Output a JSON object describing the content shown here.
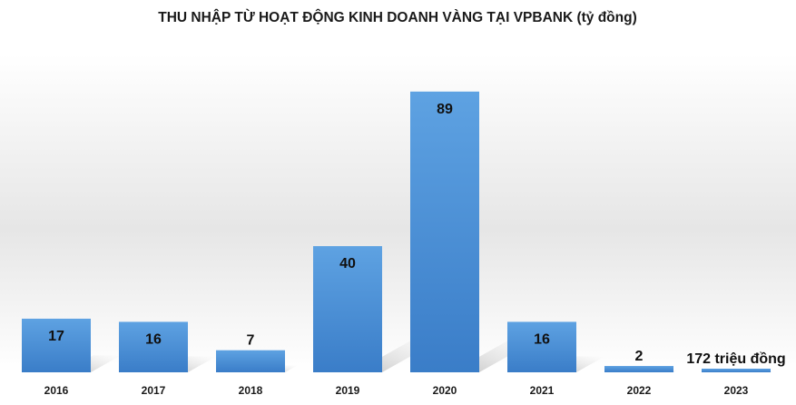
{
  "chart_data": {
    "type": "bar",
    "title": "THU NHẬP TỪ HOẠT ĐỘNG KINH DOANH VÀNG TẠI VPBANK (tỷ đồng)",
    "categories": [
      "2016",
      "2017",
      "2018",
      "2019",
      "2020",
      "2021",
      "2022",
      "2023"
    ],
    "values": [
      17,
      16,
      7,
      40,
      89,
      16,
      2,
      0.172
    ],
    "data_labels": [
      "17",
      "16",
      "7",
      "40",
      "89",
      "16",
      "2",
      "172 triệu đồng"
    ],
    "xlabel": "",
    "ylabel": "",
    "ylim": [
      0,
      95
    ],
    "grid": false,
    "legend": "none",
    "bar_color": "#4a8fd6",
    "bar_color_light": "#5ea2e2",
    "bar_color_dark": "#3a7dc8"
  }
}
